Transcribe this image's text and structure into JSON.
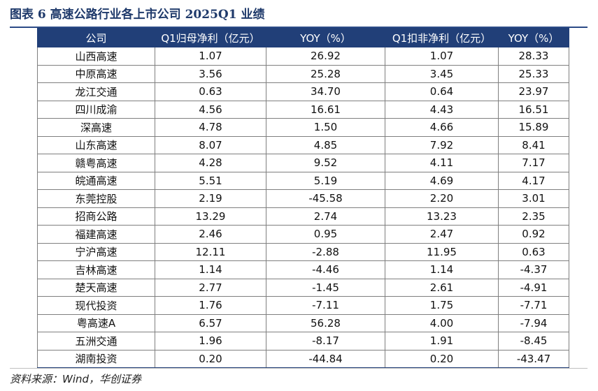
{
  "title": "图表 6  高速公路行业各上市公司 2025Q1 业绩",
  "table": {
    "headers": [
      "公司",
      "Q1归母净利（亿元）",
      "YOY（%）",
      "Q1扣非净利（亿元）",
      "YOY（%）"
    ],
    "rows": [
      [
        "山西高速",
        "1.07",
        "26.92",
        "1.07",
        "28.33"
      ],
      [
        "中原高速",
        "3.56",
        "25.28",
        "3.45",
        "25.33"
      ],
      [
        "龙江交通",
        "0.63",
        "34.70",
        "0.64",
        "23.97"
      ],
      [
        "四川成渝",
        "4.56",
        "16.61",
        "4.43",
        "16.51"
      ],
      [
        "深高速",
        "4.78",
        "1.50",
        "4.66",
        "15.89"
      ],
      [
        "山东高速",
        "8.07",
        "4.85",
        "7.92",
        "8.41"
      ],
      [
        "赣粤高速",
        "4.28",
        "9.52",
        "4.11",
        "7.17"
      ],
      [
        "皖通高速",
        "5.51",
        "5.19",
        "4.69",
        "4.17"
      ],
      [
        "东莞控股",
        "2.19",
        "-45.58",
        "2.20",
        "3.01"
      ],
      [
        "招商公路",
        "13.29",
        "2.74",
        "13.23",
        "2.35"
      ],
      [
        "福建高速",
        "2.46",
        "0.95",
        "2.47",
        "0.92"
      ],
      [
        "宁沪高速",
        "12.11",
        "-2.88",
        "11.95",
        "0.63"
      ],
      [
        "吉林高速",
        "1.14",
        "-4.46",
        "1.14",
        "-4.37"
      ],
      [
        "楚天高速",
        "2.77",
        "-1.45",
        "2.61",
        "-4.91"
      ],
      [
        "现代投资",
        "1.76",
        "-7.11",
        "1.75",
        "-7.71"
      ],
      [
        "粤高速A",
        "6.57",
        "56.28",
        "4.00",
        "-7.94"
      ],
      [
        "五洲交通",
        "1.96",
        "-8.17",
        "1.91",
        "-8.45"
      ],
      [
        "湖南投资",
        "0.20",
        "-44.84",
        "0.20",
        "-43.47"
      ]
    ]
  },
  "source": "资料来源：Wind，华创证券",
  "colors": {
    "header_bg": "#213f78",
    "title_text": "#1f3a6b"
  }
}
